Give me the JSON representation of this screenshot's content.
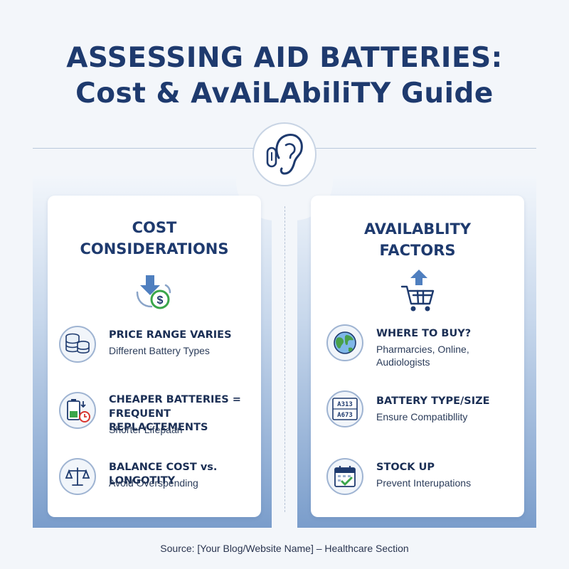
{
  "header": {
    "title_line1": "ASSESSING AID BATTERIES:",
    "title_line2": "Cost & AvAiLAbiliTY Guide"
  },
  "icons": {
    "center": "hearing-aid-ear-icon",
    "cost": "price-down-dollar-icon",
    "availability": "shopping-cart-up-icon"
  },
  "colors": {
    "accent": "#1e3a6e",
    "badge_border": "#9fb4d2",
    "panel_bottom": "#7a9dcb",
    "green_check": "#3aa64a",
    "red_clock": "#d9352f"
  },
  "cost": {
    "title_line1": "COST",
    "title_line2": "CONSIDERATIONS",
    "items": [
      {
        "icon": "coin-stacks-icon",
        "head_line1": "PRICE RANGE VARIES",
        "head_line2": "",
        "sub": "Different Battery Types"
      },
      {
        "icon": "battery-clock-icon",
        "head_line1": "CHEAPER BATTERIES =",
        "head_line2": "FREQUENT REPLACTEMENTS",
        "sub": "Shorter Lifepaan"
      },
      {
        "icon": "balance-scale-icon",
        "head_line1": "BALANCE COST vs. LONGOTITY",
        "head_line2": "",
        "sub": "Avoid Overspending"
      }
    ]
  },
  "availability": {
    "title_line1": "AVAILABLITY",
    "title_line2": "FACTORS",
    "items": [
      {
        "icon": "globe-icon",
        "head_line1": "WHERE TO BUY?",
        "sub": "Pharmarcies, Online, Audiologists"
      },
      {
        "icon": "battery-size-chart-icon",
        "head_line1": "BATTERY TYPE/SIZE",
        "sub": "Ensure Compatibllity",
        "chart_row1": "A313",
        "chart_row2": "A673"
      },
      {
        "icon": "calendar-check-icon",
        "head_line1": "STOCK UP",
        "sub": "Prevent Interupations"
      }
    ]
  },
  "footer": {
    "source": "Source: [Your Blog/Website Name] – Healthcare Section"
  }
}
